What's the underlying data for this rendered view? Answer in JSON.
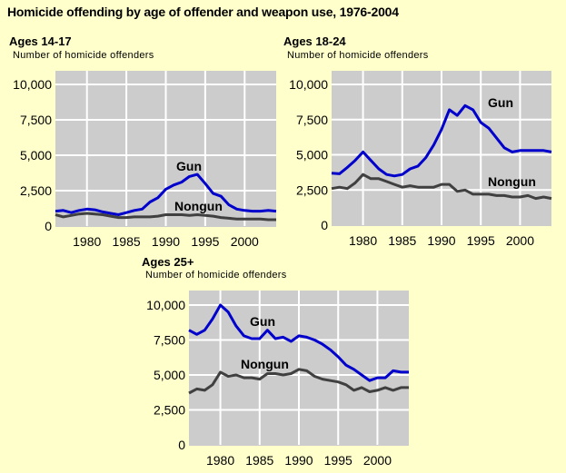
{
  "title": "Homicide offending by age of offender and weapon use, 1976-2004",
  "colors": {
    "background": "#FFFFCC",
    "plot": "#CCCCCC",
    "grid": "#FFFFFF",
    "gun": "#0000CC",
    "nongun": "#404040"
  },
  "chart_data": [
    {
      "type": "line",
      "title": "Ages 14-17",
      "ylabel": "Number of homicide offenders",
      "xlim": [
        1976,
        2004
      ],
      "ylim": [
        0,
        11000
      ],
      "x_ticks": [
        "1980",
        "1985",
        "1990",
        "1995",
        "2000"
      ],
      "y_ticks": [
        "0",
        "2,500",
        "5,000",
        "7,500",
        "10,000"
      ],
      "grid": true,
      "x": [
        1976,
        1977,
        1978,
        1979,
        1980,
        1981,
        1982,
        1983,
        1984,
        1985,
        1986,
        1987,
        1988,
        1989,
        1990,
        1991,
        1992,
        1993,
        1994,
        1995,
        1996,
        1997,
        1998,
        1999,
        2000,
        2001,
        2002,
        2003,
        2004
      ],
      "series": [
        {
          "name": "Gun",
          "values": [
            1050,
            1100,
            950,
            1100,
            1200,
            1150,
            1000,
            900,
            800,
            950,
            1100,
            1200,
            1700,
            2000,
            2600,
            2900,
            3100,
            3500,
            3650,
            3000,
            2300,
            2100,
            1500,
            1200,
            1100,
            1050,
            1050,
            1100,
            1050
          ]
        },
        {
          "name": "Nongun",
          "values": [
            800,
            650,
            750,
            850,
            900,
            850,
            800,
            700,
            600,
            600,
            650,
            650,
            650,
            700,
            800,
            800,
            800,
            750,
            800,
            750,
            700,
            600,
            550,
            500,
            500,
            500,
            500,
            450,
            450
          ]
        }
      ]
    },
    {
      "type": "line",
      "title": "Ages 18-24",
      "ylabel": "Number of homicide offenders",
      "xlim": [
        1976,
        2004
      ],
      "ylim": [
        0,
        11000
      ],
      "x_ticks": [
        "1980",
        "1985",
        "1990",
        "1995",
        "2000"
      ],
      "y_ticks": [
        "0",
        "2,500",
        "5,000",
        "7,500",
        "10,000"
      ],
      "grid": true,
      "x": [
        1976,
        1977,
        1978,
        1979,
        1980,
        1981,
        1982,
        1983,
        1984,
        1985,
        1986,
        1987,
        1988,
        1989,
        1990,
        1991,
        1992,
        1993,
        1994,
        1995,
        1996,
        1997,
        1998,
        1999,
        2000,
        2001,
        2002,
        2003,
        2004
      ],
      "series": [
        {
          "name": "Gun",
          "values": [
            3700,
            3650,
            4100,
            4600,
            5200,
            4600,
            4000,
            3600,
            3500,
            3600,
            4000,
            4200,
            4800,
            5700,
            6800,
            8200,
            7800,
            8500,
            8200,
            7300,
            6900,
            6200,
            5500,
            5200,
            5300,
            5300,
            5300,
            5300,
            5200
          ]
        },
        {
          "name": "Nongun",
          "values": [
            2600,
            2700,
            2600,
            3000,
            3600,
            3300,
            3300,
            3100,
            2900,
            2700,
            2800,
            2700,
            2700,
            2700,
            2900,
            2900,
            2400,
            2500,
            2200,
            2200,
            2200,
            2100,
            2100,
            2000,
            2000,
            2100,
            1900,
            2000,
            1900
          ]
        }
      ]
    },
    {
      "type": "line",
      "title": "Ages 25+",
      "ylabel": "Number of homicide offenders",
      "xlim": [
        1976,
        2004
      ],
      "ylim": [
        0,
        11000
      ],
      "x_ticks": [
        "1980",
        "1985",
        "1990",
        "1995",
        "2000"
      ],
      "y_ticks": [
        "0",
        "2,500",
        "5,000",
        "7,500",
        "10,000"
      ],
      "grid": true,
      "x": [
        1976,
        1977,
        1978,
        1979,
        1980,
        1981,
        1982,
        1983,
        1984,
        1985,
        1986,
        1987,
        1988,
        1989,
        1990,
        1991,
        1992,
        1993,
        1994,
        1995,
        1996,
        1997,
        1998,
        1999,
        2000,
        2001,
        2002,
        2003,
        2004
      ],
      "series": [
        {
          "name": "Gun",
          "values": [
            8200,
            7900,
            8200,
            9000,
            10000,
            9500,
            8500,
            7800,
            7600,
            7600,
            8200,
            7600,
            7700,
            7400,
            7800,
            7700,
            7500,
            7200,
            6800,
            6300,
            5700,
            5400,
            5000,
            4600,
            4800,
            4800,
            5300,
            5200,
            5200
          ]
        },
        {
          "name": "Nongun",
          "values": [
            3700,
            4000,
            3900,
            4300,
            5200,
            4900,
            5000,
            4800,
            4800,
            4700,
            5100,
            5100,
            5000,
            5100,
            5400,
            5300,
            4900,
            4700,
            4600,
            4500,
            4300,
            3900,
            4100,
            3800,
            3900,
            4100,
            3900,
            4100,
            4100
          ]
        }
      ]
    }
  ]
}
